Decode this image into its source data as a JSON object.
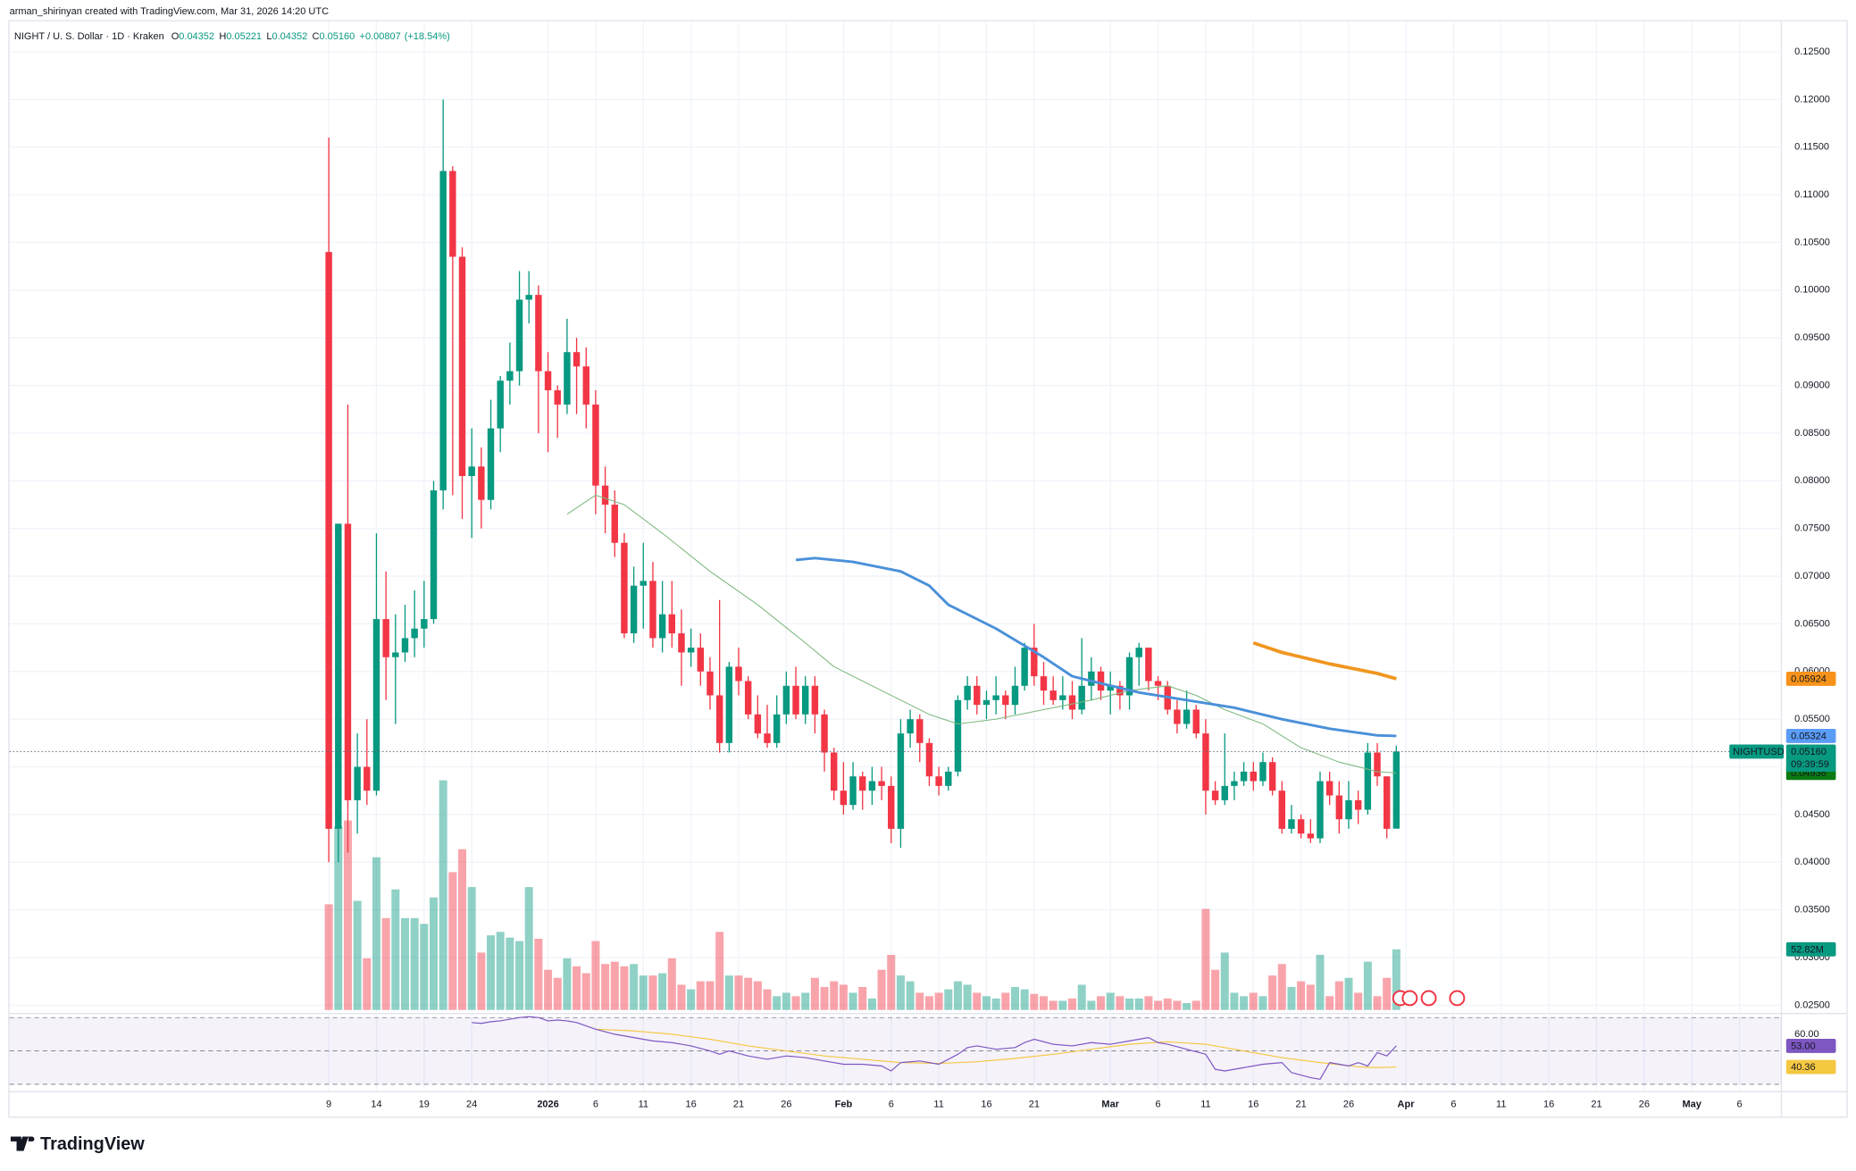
{
  "header": {
    "attribution": "arman_shirinyan created with TradingView.com, Mar 31, 2026 14:20 UTC"
  },
  "footer": {
    "brand": "TradingView"
  },
  "chart_data": {
    "type": "candlestick",
    "title": "NIGHT / U. S. Dollar · 1D · Kraken",
    "ohlc_keys": [
      "O",
      "H",
      "L",
      "C"
    ],
    "ohlc_values": [
      0.04352,
      0.05221,
      0.04352,
      {
        "value": 0.0516,
        "label": "0.05160"
      }
    ],
    "change": {
      "value": 0.00807,
      "label": "+0.00807"
    },
    "change_pct": {
      "value": 18.54,
      "label": "(+18.54%)"
    },
    "up_color": "#089981",
    "down_color": "#f23645",
    "grid": true,
    "xlim": [
      -33.5,
      152.4
    ],
    "xticks": [
      {
        "value": 0,
        "label": "9"
      },
      {
        "value": 5,
        "label": "14"
      },
      {
        "value": 10,
        "label": "19"
      },
      {
        "value": 15,
        "label": "24"
      },
      {
        "value": 23,
        "label": "2026"
      },
      {
        "value": 28,
        "label": "6"
      },
      {
        "value": 33,
        "label": "11"
      },
      {
        "value": 38,
        "label": "16"
      },
      {
        "value": 43,
        "label": "21"
      },
      {
        "value": 48,
        "label": "26"
      },
      {
        "value": 54,
        "label": "Feb"
      },
      {
        "value": 59,
        "label": "6"
      },
      {
        "value": 64,
        "label": "11"
      },
      {
        "value": 69,
        "label": "16"
      },
      {
        "value": 74,
        "label": "21"
      },
      {
        "value": 82,
        "label": "Mar"
      },
      {
        "value": 87,
        "label": "6"
      },
      {
        "value": 92,
        "label": "11"
      },
      {
        "value": 97,
        "label": "16"
      },
      {
        "value": 102,
        "label": "21"
      },
      {
        "value": 107,
        "label": "26"
      },
      {
        "value": 113,
        "label": "Apr"
      },
      {
        "value": 118,
        "label": "6"
      },
      {
        "value": 123,
        "label": "11"
      },
      {
        "value": 128,
        "label": "16"
      },
      {
        "value": 133,
        "label": "21"
      },
      {
        "value": 138,
        "label": "26"
      },
      {
        "value": 143,
        "label": "May"
      },
      {
        "value": 148,
        "label": "6"
      }
    ],
    "ylim": [
      0.02425,
      0.12944
    ],
    "yticks": [
      {
        "value": 0.025,
        "label": "0.02500"
      },
      {
        "value": 0.03,
        "label": "0.03000"
      },
      {
        "value": 0.035,
        "label": "0.03500"
      },
      {
        "value": 0.04,
        "label": "0.04000"
      },
      {
        "value": 0.045,
        "label": "0.04500"
      },
      {
        "value": 0.05,
        "label": "0.05000"
      },
      {
        "value": 0.055,
        "label": "0.05500"
      },
      {
        "value": 0.06,
        "label": "0.06000"
      },
      {
        "value": 0.065,
        "label": "0.06500"
      },
      {
        "value": 0.07,
        "label": "0.07000"
      },
      {
        "value": 0.075,
        "label": "0.07500"
      },
      {
        "value": 0.08,
        "label": "0.08000"
      },
      {
        "value": 0.085,
        "label": "0.08500"
      },
      {
        "value": 0.09,
        "label": "0.09000"
      },
      {
        "value": 0.095,
        "label": "0.09500"
      },
      {
        "value": 0.1,
        "label": "0.10000"
      },
      {
        "value": 0.105,
        "label": "0.10500"
      },
      {
        "value": 0.11,
        "label": "0.11000"
      },
      {
        "value": 0.115,
        "label": "0.11500"
      },
      {
        "value": 0.12,
        "label": "0.12000"
      },
      {
        "value": 0.125,
        "label": "0.12500"
      }
    ],
    "open": [
      0.104,
      0.0435,
      0.0755,
      0.0465,
      0.05,
      0.0475,
      0.0655,
      0.0615,
      0.062,
      0.0635,
      0.0645,
      0.0655,
      0.079,
      0.1125,
      0.1035,
      0.0805,
      0.0815,
      0.078,
      0.0855,
      0.0905,
      0.0915,
      0.099,
      0.0995,
      0.0915,
      0.0895,
      0.088,
      0.0935,
      0.092,
      0.088,
      0.0795,
      0.0775,
      0.0735,
      0.064,
      0.069,
      0.0695,
      0.0635,
      0.066,
      0.064,
      0.062,
      0.0625,
      0.06,
      0.0575,
      0.0525,
      0.0605,
      0.059,
      0.0555,
      0.0535,
      0.0525,
      0.0555,
      0.0585,
      0.0555,
      0.0585,
      0.0555,
      0.0515,
      0.0475,
      0.046,
      0.049,
      0.0475,
      0.0485,
      0.048,
      0.0435,
      0.0535,
      0.055,
      0.0525,
      0.049,
      0.048,
      0.0495,
      0.057,
      0.0585,
      0.0565,
      0.057,
      0.0575,
      0.0565,
      0.0585,
      0.0625,
      0.0595,
      0.058,
      0.057,
      0.0575,
      0.056,
      0.0585,
      0.06,
      0.058,
      0.0585,
      0.0575,
      0.0615,
      0.0625,
      0.059,
      0.0585,
      0.056,
      0.0545,
      0.056,
      0.0535,
      0.0475,
      0.0465,
      0.048,
      0.0485,
      0.0495,
      0.0485,
      0.0505,
      0.0475,
      0.0435,
      0.0445,
      0.043,
      0.0425,
      0.0485,
      0.047,
      0.0445,
      0.0465,
      0.0455,
      0.0515,
      0.049,
      0.04352
    ],
    "high": [
      0.116,
      0.0755,
      0.088,
      0.0535,
      0.055,
      0.0745,
      0.0705,
      0.066,
      0.067,
      0.0685,
      0.0695,
      0.08,
      0.12,
      0.113,
      0.1045,
      0.0855,
      0.0835,
      0.0885,
      0.091,
      0.0945,
      0.102,
      0.102,
      0.1005,
      0.0935,
      0.09,
      0.097,
      0.095,
      0.094,
      0.0895,
      0.0815,
      0.079,
      0.0745,
      0.071,
      0.0735,
      0.0715,
      0.0695,
      0.0695,
      0.0665,
      0.0645,
      0.064,
      0.0615,
      0.0675,
      0.061,
      0.0625,
      0.0595,
      0.0575,
      0.0565,
      0.0575,
      0.06,
      0.0605,
      0.0595,
      0.0595,
      0.056,
      0.052,
      0.0505,
      0.0505,
      0.0495,
      0.05,
      0.05,
      0.049,
      0.055,
      0.056,
      0.0555,
      0.053,
      0.05,
      0.05,
      0.0575,
      0.0595,
      0.0595,
      0.058,
      0.0595,
      0.058,
      0.0605,
      0.063,
      0.065,
      0.061,
      0.0595,
      0.0595,
      0.059,
      0.0635,
      0.0615,
      0.0605,
      0.06,
      0.059,
      0.062,
      0.063,
      0.0625,
      0.0595,
      0.059,
      0.057,
      0.058,
      0.0565,
      0.055,
      0.0485,
      0.0535,
      0.0495,
      0.0505,
      0.0505,
      0.0515,
      0.051,
      0.0485,
      0.046,
      0.045,
      0.0445,
      0.0495,
      0.0495,
      0.0485,
      0.0485,
      0.0475,
      0.0525,
      0.0525,
      0.049,
      0.05221
    ],
    "low": [
      0.04,
      0.04,
      0.041,
      0.043,
      0.046,
      0.047,
      0.057,
      0.0545,
      0.061,
      0.0615,
      0.0625,
      0.065,
      0.077,
      0.0785,
      0.076,
      0.074,
      0.075,
      0.077,
      0.083,
      0.088,
      0.09,
      0.0965,
      0.085,
      0.083,
      0.0845,
      0.087,
      0.087,
      0.0855,
      0.0765,
      0.0745,
      0.072,
      0.0635,
      0.063,
      0.0645,
      0.0625,
      0.062,
      0.0625,
      0.0585,
      0.0605,
      0.0585,
      0.056,
      0.0515,
      0.0515,
      0.0575,
      0.055,
      0.053,
      0.052,
      0.052,
      0.0545,
      0.055,
      0.0545,
      0.0535,
      0.0495,
      0.0465,
      0.045,
      0.0455,
      0.0455,
      0.046,
      0.0465,
      0.042,
      0.0415,
      0.052,
      0.0505,
      0.048,
      0.047,
      0.0475,
      0.049,
      0.056,
      0.0555,
      0.055,
      0.0555,
      0.055,
      0.0555,
      0.058,
      0.0585,
      0.0565,
      0.0565,
      0.056,
      0.055,
      0.0555,
      0.057,
      0.057,
      0.0555,
      0.056,
      0.056,
      0.0585,
      0.058,
      0.057,
      0.0555,
      0.0535,
      0.054,
      0.053,
      0.045,
      0.046,
      0.046,
      0.0465,
      0.048,
      0.0475,
      0.048,
      0.047,
      0.043,
      0.043,
      0.0425,
      0.042,
      0.042,
      0.046,
      0.043,
      0.0435,
      0.044,
      0.045,
      0.048,
      0.0425,
      0.04352
    ],
    "close": [
      0.0435,
      0.0755,
      0.0465,
      0.05,
      0.0475,
      0.0655,
      0.0615,
      0.062,
      0.0635,
      0.0645,
      0.0655,
      0.079,
      0.1125,
      0.1035,
      0.0805,
      0.0815,
      0.078,
      0.0855,
      0.0905,
      0.0915,
      0.099,
      0.0995,
      0.0915,
      0.0895,
      0.088,
      0.0935,
      0.092,
      0.088,
      0.0795,
      0.0775,
      0.0735,
      0.064,
      0.069,
      0.0695,
      0.0635,
      0.066,
      0.064,
      0.062,
      0.0625,
      0.06,
      0.0575,
      0.0525,
      0.0605,
      0.059,
      0.0555,
      0.0535,
      0.0525,
      0.0555,
      0.0585,
      0.0555,
      0.0585,
      0.0555,
      0.0515,
      0.0475,
      0.046,
      0.049,
      0.0475,
      0.0485,
      0.048,
      0.0435,
      0.0535,
      0.055,
      0.0525,
      0.049,
      0.048,
      0.0495,
      0.057,
      0.0585,
      0.0565,
      0.057,
      0.0575,
      0.0565,
      0.0585,
      0.0625,
      0.0595,
      0.058,
      0.057,
      0.0575,
      0.056,
      0.0585,
      0.06,
      0.058,
      0.0585,
      0.0575,
      0.0615,
      0.0625,
      0.059,
      0.0585,
      0.056,
      0.0545,
      0.056,
      0.0535,
      0.0475,
      0.0465,
      0.048,
      0.0485,
      0.0495,
      0.0485,
      0.0505,
      0.0475,
      0.0435,
      0.0445,
      0.043,
      0.0425,
      0.0485,
      0.047,
      0.0445,
      0.0465,
      0.0455,
      0.0515,
      0.049,
      0.0435,
      0.0516
    ],
    "volume": [
      92,
      160,
      165,
      95,
      45,
      133,
      80,
      105,
      80,
      80,
      75,
      98,
      200,
      120,
      140,
      107,
      50,
      65,
      68,
      63,
      60,
      107,
      62,
      35,
      28,
      45,
      38,
      32,
      60,
      40,
      42,
      38,
      40,
      30,
      30,
      32,
      45,
      22,
      18,
      25,
      25,
      68,
      30,
      30,
      28,
      25,
      18,
      12,
      15,
      12,
      15,
      28,
      20,
      25,
      22,
      15,
      20,
      10,
      35,
      48,
      30,
      25,
      15,
      12,
      15,
      18,
      25,
      22,
      15,
      12,
      10,
      15,
      20,
      18,
      14,
      12,
      8,
      8,
      10,
      22,
      8,
      12,
      15,
      12,
      10,
      10,
      12,
      8,
      10,
      8,
      6,
      8,
      88,
      35,
      50,
      15,
      12,
      15,
      12,
      30,
      40,
      20,
      25,
      22,
      48,
      12,
      25,
      28,
      15,
      42,
      12,
      28,
      52.82
    ],
    "volume_last_label": "52.82M",
    "symbol_label": "NIGHTUSD",
    "last_price_label": "0.05160",
    "countdown": "09:39:59",
    "overlays": [
      {
        "color": "#7cb87e",
        "width": 0.8,
        "x": [
          25,
          28,
          31,
          35,
          40,
          45,
          50,
          53,
          57,
          60,
          63,
          66,
          70,
          75,
          80,
          84,
          88,
          91,
          94,
          98,
          102,
          106,
          110,
          112
        ],
        "values": [
          0.0765,
          0.0785,
          0.0775,
          0.0745,
          0.0705,
          0.067,
          0.063,
          0.0605,
          0.0585,
          0.057,
          0.0555,
          0.0545,
          0.055,
          0.056,
          0.057,
          0.058,
          0.0585,
          0.0575,
          0.056,
          0.0545,
          0.052,
          0.0505,
          0.0495,
          0.04936
        ],
        "last_label": "0.04936",
        "badge_color": "#0b7a12"
      },
      {
        "color": "#4a90d9",
        "width": 2.2,
        "x": [
          49,
          51,
          55,
          60,
          63,
          65,
          70,
          75,
          78,
          80,
          85,
          90,
          95,
          100,
          105,
          110,
          112
        ],
        "values": [
          0.0717,
          0.0719,
          0.0715,
          0.0705,
          0.069,
          0.067,
          0.0645,
          0.0615,
          0.0595,
          0.059,
          0.0578,
          0.057,
          0.0562,
          0.055,
          0.054,
          0.0533,
          0.05324
        ],
        "last_label": "0.05324",
        "badge_color": "#5b9cf6"
      },
      {
        "color": "#f0961e",
        "width": 2.8,
        "x": [
          97,
          100,
          105,
          110,
          112
        ],
        "values": [
          0.063,
          0.062,
          0.0608,
          0.0598,
          0.05924
        ],
        "last_label": "0.05924",
        "badge_color": "#f7931a"
      }
    ],
    "rsi": {
      "ylim": [
        27,
        71
      ],
      "yticks": [
        {
          "value": 60,
          "label": "60.00"
        }
      ],
      "bands": [
        30,
        50,
        70
      ],
      "line": {
        "color": "#7e57c2",
        "x": [
          15,
          16,
          17,
          18,
          19,
          20,
          21,
          22,
          23,
          24,
          25,
          26,
          27,
          28,
          30,
          32,
          34,
          36,
          38,
          40,
          41,
          42,
          44,
          46,
          48,
          50,
          52,
          54,
          56,
          58,
          59,
          60,
          62,
          64,
          66,
          67,
          68,
          70,
          72,
          73,
          74,
          76,
          78,
          80,
          82,
          84,
          85,
          86,
          87,
          88,
          90,
          92,
          93,
          94,
          96,
          98,
          100,
          101,
          103,
          104,
          105,
          107,
          108,
          109,
          110,
          111,
          112
        ],
        "values": [
          67,
          66.5,
          67.5,
          68,
          69,
          70,
          70.5,
          70,
          68,
          68.5,
          68,
          67,
          65,
          63,
          60,
          58,
          56,
          55,
          53,
          50,
          48,
          50,
          47,
          45,
          47,
          46,
          44,
          42,
          42,
          41,
          38,
          43,
          44,
          42,
          48,
          52,
          53,
          51,
          52,
          55,
          57,
          54,
          53,
          55,
          54,
          56,
          57,
          58,
          55,
          54,
          51,
          48,
          39,
          38,
          40,
          42,
          43,
          37,
          34,
          33,
          43,
          41,
          43,
          41,
          49,
          47,
          53
        ],
        "last_label": "53.00"
      },
      "ma": {
        "color": "#f5c842",
        "x": [
          28,
          32,
          36,
          40,
          44,
          48,
          52,
          56,
          60,
          64,
          68,
          72,
          76,
          80,
          84,
          88,
          92,
          96,
          100,
          104,
          108,
          110,
          112
        ],
        "values": [
          63,
          62,
          60,
          57,
          53,
          50,
          47,
          45,
          43,
          42.5,
          43.5,
          45.5,
          48,
          51,
          54,
          55.5,
          54,
          50,
          46,
          43,
          40.5,
          40,
          40.36
        ],
        "last_label": "40.36"
      }
    }
  }
}
